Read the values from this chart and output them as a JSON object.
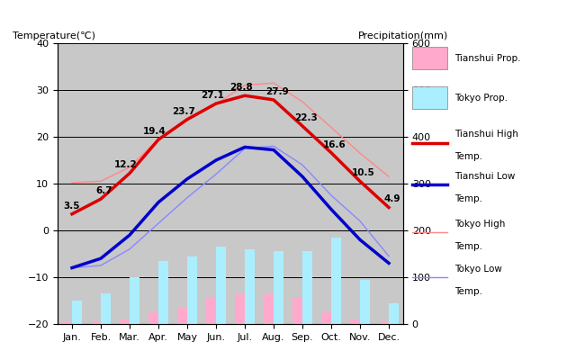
{
  "months": [
    "Jan.",
    "Feb.",
    "Mar.",
    "Apr.",
    "May",
    "Jun.",
    "Jul.",
    "Aug.",
    "Sep.",
    "Oct.",
    "Nov.",
    "Dec."
  ],
  "tianshui_high": [
    3.5,
    6.7,
    12.2,
    19.4,
    23.7,
    27.1,
    28.8,
    27.9,
    22.3,
    16.6,
    10.5,
    4.9
  ],
  "tianshui_low": [
    -8.0,
    -6.0,
    -1.0,
    6.0,
    11.0,
    15.0,
    17.8,
    17.2,
    11.5,
    4.5,
    -2.0,
    -7.0
  ],
  "tokyo_high": [
    10.2,
    10.5,
    13.5,
    19.5,
    24.0,
    27.0,
    31.0,
    31.5,
    27.5,
    22.0,
    16.5,
    11.5
  ],
  "tokyo_low": [
    -8.0,
    -7.5,
    -4.0,
    1.5,
    7.0,
    12.0,
    17.5,
    18.0,
    14.0,
    7.5,
    2.0,
    -5.5
  ],
  "tianshui_precip_mm": [
    5,
    5,
    10,
    25,
    35,
    55,
    65,
    65,
    55,
    25,
    10,
    5
  ],
  "tokyo_precip_mm": [
    50,
    65,
    100,
    135,
    145,
    165,
    160,
    155,
    155,
    185,
    95,
    45
  ],
  "tianshui_high_color": "#dd0000",
  "tianshui_low_color": "#0000cc",
  "tokyo_high_color": "#ff8888",
  "tokyo_low_color": "#8888ff",
  "tianshui_bar_color": "#ffaacc",
  "tokyo_bar_color": "#aaeeff",
  "bg_color": "#c8c8c8",
  "title_left": "Temperature(℃)",
  "title_right": "Precipitation(mm)",
  "ylim_temp": [
    -20,
    40
  ],
  "ylim_precip": [
    0,
    600
  ],
  "legend_labels": [
    "Tianshui Prop.",
    "Tokyo Prop.",
    "Tianshui High\nTemp.",
    "Tianshui Low\nTemp.",
    "Tokyo High\nTemp.",
    "Tokyo Low\nTemp."
  ]
}
